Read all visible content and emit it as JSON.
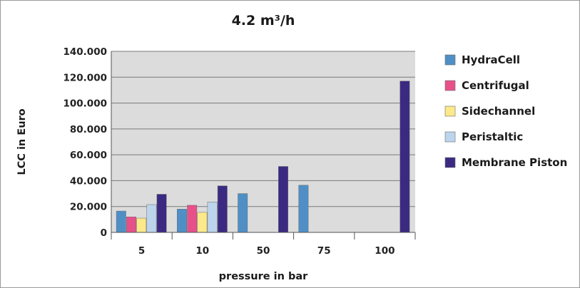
{
  "chart_data": {
    "type": "bar",
    "title": "4.2 m³/h",
    "xlabel": "pressure in bar",
    "ylabel": "LCC in Euro",
    "categories": [
      "5",
      "10",
      "50",
      "75",
      "100"
    ],
    "ylim": [
      0,
      140000
    ],
    "yticks": [
      0,
      20000,
      40000,
      60000,
      80000,
      100000,
      120000,
      140000
    ],
    "ytick_labels": [
      "0",
      "20.000",
      "40.000",
      "60.000",
      "80.000",
      "100.000",
      "120.000",
      "140.000"
    ],
    "grid": true,
    "legend_position": "right",
    "series": [
      {
        "name": "HydraCell",
        "color": "#4f8fc6",
        "values": [
          16500,
          18000,
          30000,
          36500,
          null
        ]
      },
      {
        "name": "Centrifugal",
        "color": "#e8508a",
        "values": [
          12000,
          21000,
          null,
          null,
          null
        ]
      },
      {
        "name": "Sidechannel",
        "color": "#fbe98a",
        "values": [
          11000,
          15500,
          null,
          null,
          null
        ]
      },
      {
        "name": "Peristaltic",
        "color": "#bcd4ec",
        "values": [
          21500,
          23500,
          null,
          null,
          null
        ]
      },
      {
        "name": "Membrane Piston",
        "color": "#3b2a82",
        "values": [
          29500,
          36000,
          51000,
          null,
          117000
        ]
      }
    ]
  }
}
